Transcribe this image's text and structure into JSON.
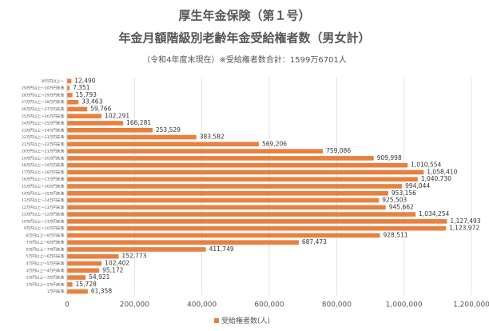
{
  "chart_data": {
    "type": "barh",
    "title": "厚生年金保険（第１号）",
    "subtitle": "年金月額階級別老齢年金受給権者数（男女計）",
    "note": "（令和4年度末現在）※受給権者数合計：1599万6701人",
    "categories": [
      "30万円以上～",
      "29万円以上～30万円未満",
      "28万円以上～29万円未満",
      "27万円以上～28万円未満",
      "26万円以上～27万円未満",
      "25万円以上～26万円未満",
      "24万円以上～25万円未満",
      "23万円以上～24万円未満",
      "22万円以上～23万円未満",
      "21万円以上～22万円未満",
      "20万円以上～21万円未満",
      "19万円以上～20万円未満",
      "18万円以上～19万円未満",
      "17万円以上～18万円未満",
      "16万円以上～17万円未満",
      "15万円以上～16万円未満",
      "14万円以上～15万円未満",
      "13万円以上～14万円未満",
      "12万円以上～13万円未満",
      "11万円以上～12万円未満",
      "10万円以上～11万円未満",
      "9万円以上～10万円未満",
      "8万円以上～9万円未満",
      "7万円以上～8万円未満",
      "6万円以上～7万円未満",
      "5万円以上～6万円未満",
      "4万円以上～5万円未満",
      "3万円以上～4万円未満",
      "2万円以上～3万円未満",
      "1万円以上～2万円未満",
      "1万円未満"
    ],
    "series": [
      {
        "name": "受給権者数(人)",
        "color": "#e8803f",
        "values": [
          12490,
          7351,
          15793,
          33463,
          59766,
          102291,
          166281,
          253529,
          383582,
          569206,
          759086,
          909998,
          1010554,
          1058410,
          1040730,
          994044,
          953156,
          925503,
          945662,
          1034254,
          1127493,
          1123972,
          928511,
          687473,
          411749,
          152773,
          102402,
          95172,
          54921,
          15728,
          61358
        ],
        "value_labels": [
          "12,490",
          "7,351",
          "15,793",
          "33,463",
          "59,766",
          "102,291",
          "166,281",
          "253,529",
          "383,582",
          "569,206",
          "759,086",
          "909,998",
          "1,010,554",
          "1,058,410",
          "1,040,730",
          "994,044",
          "953,156",
          "925,503",
          "945,662",
          "1,034,254",
          "1,127,493",
          "1,123,972",
          "928,511",
          "687,473",
          "411,749",
          "152,773",
          "102,402",
          "95,172",
          "54,921",
          "15,728",
          "61,358"
        ]
      }
    ],
    "xlim": [
      0,
      1200000
    ],
    "xticks": [
      0,
      {
        "value": 200000,
        "label": "200,000"
      },
      {
        "value": 400000,
        "label": "400,000"
      },
      {
        "value": 600000,
        "label": "600,000"
      },
      {
        "value": 800000,
        "label": "800,000"
      },
      {
        "value": 1000000,
        "label": "1,000,000"
      },
      {
        "value": 1200000,
        "label": "1,200,000"
      }
    ],
    "grid": true,
    "legend": "bottom"
  }
}
